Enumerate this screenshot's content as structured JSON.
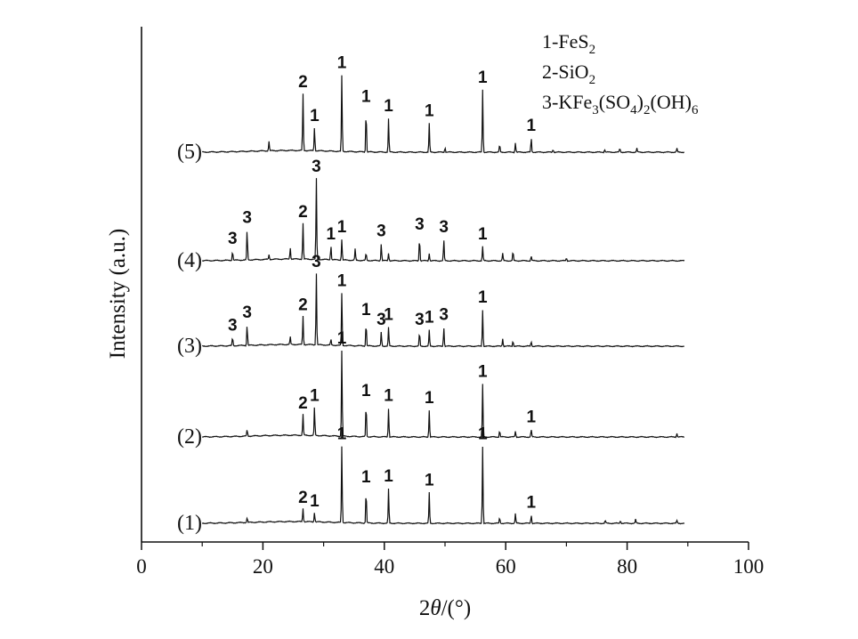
{
  "chart_data": {
    "type": "line",
    "xlabel": "2θ/(°)",
    "ylabel": "Intensity (a.u.)",
    "xlim": [
      0,
      100
    ],
    "xticks": [
      0,
      20,
      40,
      60,
      80,
      100
    ],
    "legend": {
      "placement": "top-right",
      "entries": [
        {
          "num": "1-",
          "formula": [
            [
              "FeS",
              "n"
            ],
            [
              "2",
              "sub"
            ]
          ]
        },
        {
          "num": "2-",
          "formula": [
            [
              "SiO",
              "n"
            ],
            [
              "2",
              "sub"
            ]
          ]
        },
        {
          "num": "3-",
          "formula": [
            [
              "KFe",
              "n"
            ],
            [
              "3",
              "sub"
            ],
            [
              "(SO",
              "n"
            ],
            [
              "4",
              "sub"
            ],
            [
              ")",
              "n"
            ],
            [
              "2",
              "sub"
            ],
            [
              "(OH)",
              "n"
            ],
            [
              "6",
              "sub"
            ]
          ]
        }
      ]
    },
    "series": [
      {
        "name": "(1)",
        "peaks": [
          [
            17.4,
            0.05
          ],
          [
            26.6,
            0.14
          ],
          [
            28.5,
            0.1
          ],
          [
            33.0,
            0.8
          ],
          [
            37.0,
            0.35
          ],
          [
            40.7,
            0.36
          ],
          [
            47.4,
            0.32
          ],
          [
            56.2,
            0.8
          ],
          [
            59.0,
            0.06
          ],
          [
            61.6,
            0.1
          ],
          [
            64.2,
            0.09
          ],
          [
            76.4,
            0.03
          ],
          [
            78.9,
            0.03
          ],
          [
            81.4,
            0.04
          ],
          [
            88.2,
            0.03
          ]
        ],
        "labels": [
          [
            "2",
            26.6
          ],
          [
            "1",
            28.5
          ],
          [
            "1",
            33.0
          ],
          [
            "1",
            37.0
          ],
          [
            "1",
            40.7
          ],
          [
            "1",
            47.4
          ],
          [
            "1",
            56.2
          ],
          [
            "1",
            64.2
          ]
        ]
      },
      {
        "name": "(2)",
        "peaks": [
          [
            17.4,
            0.07
          ],
          [
            26.6,
            0.22
          ],
          [
            28.5,
            0.3
          ],
          [
            33.0,
            0.9
          ],
          [
            37.0,
            0.35
          ],
          [
            40.7,
            0.3
          ],
          [
            47.4,
            0.28
          ],
          [
            56.2,
            0.55
          ],
          [
            59.0,
            0.07
          ],
          [
            61.6,
            0.06
          ],
          [
            64.2,
            0.08
          ],
          [
            88.2,
            0.04
          ]
        ],
        "labels": [
          [
            "2",
            26.6
          ],
          [
            "1",
            28.5
          ],
          [
            "1",
            33.0
          ],
          [
            "1",
            37.0
          ],
          [
            "1",
            40.7
          ],
          [
            "1",
            47.4
          ],
          [
            "1",
            56.2
          ],
          [
            "1",
            64.2
          ]
        ]
      },
      {
        "name": "(3)",
        "peaks": [
          [
            15.0,
            0.09
          ],
          [
            17.4,
            0.22
          ],
          [
            24.5,
            0.08
          ],
          [
            26.6,
            0.3
          ],
          [
            28.8,
            0.75
          ],
          [
            31.2,
            0.06
          ],
          [
            33.0,
            0.55
          ],
          [
            37.0,
            0.25
          ],
          [
            39.5,
            0.15
          ],
          [
            40.7,
            0.2
          ],
          [
            45.8,
            0.15
          ],
          [
            47.4,
            0.17
          ],
          [
            49.8,
            0.2
          ],
          [
            56.2,
            0.38
          ],
          [
            59.5,
            0.08
          ],
          [
            61.2,
            0.06
          ],
          [
            64.2,
            0.05
          ]
        ],
        "labels": [
          [
            "3",
            15.0
          ],
          [
            "3",
            17.4
          ],
          [
            "2",
            26.6
          ],
          [
            "3",
            28.8
          ],
          [
            "1",
            33.0
          ],
          [
            "1",
            37.0
          ],
          [
            "3",
            39.5
          ],
          [
            "1",
            40.7
          ],
          [
            "3",
            45.8
          ],
          [
            "1",
            47.4
          ],
          [
            "3",
            49.8
          ],
          [
            "1",
            56.2
          ]
        ]
      },
      {
        "name": "(4)",
        "peaks": [
          [
            15.0,
            0.1
          ],
          [
            17.4,
            0.32
          ],
          [
            21.0,
            0.05
          ],
          [
            24.5,
            0.12
          ],
          [
            26.6,
            0.38
          ],
          [
            28.8,
            0.85
          ],
          [
            31.2,
            0.15
          ],
          [
            33.0,
            0.22
          ],
          [
            35.2,
            0.12
          ],
          [
            37.0,
            0.08
          ],
          [
            39.5,
            0.18
          ],
          [
            40.7,
            0.08
          ],
          [
            45.8,
            0.25
          ],
          [
            47.4,
            0.08
          ],
          [
            49.8,
            0.22
          ],
          [
            56.2,
            0.15
          ],
          [
            59.5,
            0.08
          ],
          [
            61.2,
            0.1
          ],
          [
            64.2,
            0.05
          ],
          [
            70.0,
            0.03
          ]
        ],
        "labels": [
          [
            "3",
            15.0
          ],
          [
            "3",
            17.4
          ],
          [
            "2",
            26.6
          ],
          [
            "3",
            28.8
          ],
          [
            "1",
            31.2
          ],
          [
            "1",
            33.0
          ],
          [
            "3",
            39.5
          ],
          [
            "3",
            45.8
          ],
          [
            "3",
            49.8
          ],
          [
            "1",
            56.2
          ]
        ]
      },
      {
        "name": "(5)",
        "peaks": [
          [
            21.0,
            0.1
          ],
          [
            26.6,
            0.6
          ],
          [
            28.5,
            0.25
          ],
          [
            33.0,
            0.8
          ],
          [
            37.0,
            0.45
          ],
          [
            40.7,
            0.35
          ],
          [
            47.4,
            0.3
          ],
          [
            50.0,
            0.05
          ],
          [
            56.2,
            0.65
          ],
          [
            59.0,
            0.08
          ],
          [
            61.6,
            0.1
          ],
          [
            64.2,
            0.15
          ],
          [
            67.8,
            0.03
          ],
          [
            76.3,
            0.03
          ],
          [
            78.8,
            0.04
          ],
          [
            81.6,
            0.04
          ],
          [
            88.2,
            0.04
          ]
        ],
        "labels": [
          [
            "2",
            26.6
          ],
          [
            "1",
            28.5
          ],
          [
            "1",
            33.0
          ],
          [
            "1",
            37.0
          ],
          [
            "1",
            40.7
          ],
          [
            "1",
            47.4
          ],
          [
            "1",
            56.2
          ],
          [
            "1",
            64.2
          ]
        ]
      }
    ]
  }
}
